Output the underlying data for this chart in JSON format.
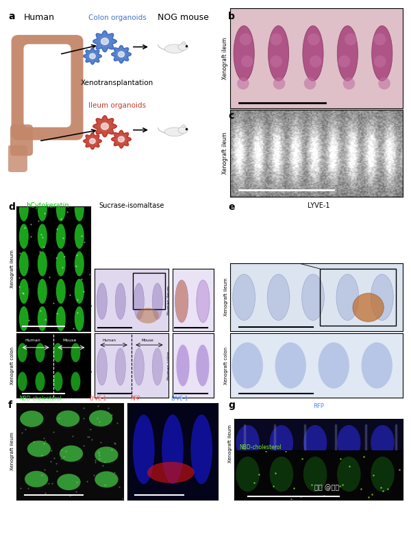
{
  "fig_width": 6.0,
  "fig_height": 7.92,
  "bg_color": "#ffffff",
  "panel_label_fontsize": 10,
  "panel_label_weight": "bold",
  "human_label": "Human",
  "mouse_label": "NOG mouse",
  "colon_organoids_label": "Colon organoids",
  "xeno_label": "Xenotransplantation",
  "ileum_organoids_label": "Ileum organoids",
  "panel_b_ylabel": "Xenograft ileum",
  "panel_c_ylabel": "Xenograft ileum",
  "panel_d_title1": "hCytokeratin",
  "panel_d_title2": "Sucrase-isomaltase",
  "panel_e_title": "LYVE-1",
  "panel_d_ylabel1": "Xenograft ileum",
  "panel_d_ylabel2": "Xenograft colon",
  "panel_e_ylabel1": "Xenograft ileum",
  "panel_e_ylabel2": "Xenograft colon",
  "panel_f_title1": "NBD-cholesterol",
  "panel_f_title2": "LYVE-1",
  "panel_f_title3": "RFP",
  "panel_f_title4": "LYVE-1",
  "panel_f_ylabel": "Xenograft ileum",
  "panel_g_title": "RFP",
  "panel_g_title2": "NBD-cholesterol",
  "panel_g_ylabel": "Xenograft ileum",
  "colon_color": "#C4876A",
  "colon_organoid_color": "#4472C4",
  "ileum_organoid_color": "#C0392B",
  "watermark": "知乎 @理花"
}
